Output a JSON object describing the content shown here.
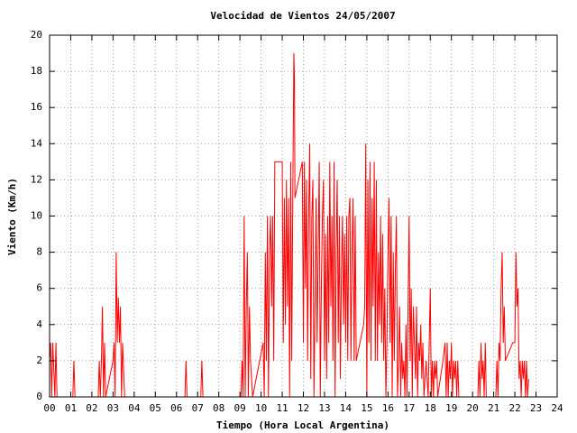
{
  "chart_data": {
    "type": "line",
    "title": "Velocidad de Vientos 24/05/2007",
    "xlabel": "Tiempo (Hora Local Argentina)",
    "ylabel": "Viento (Km/h)",
    "color": "#ff0000",
    "grid": true,
    "xlim": [
      0,
      24
    ],
    "ylim": [
      0,
      20
    ],
    "yticks": [
      0,
      2,
      4,
      6,
      8,
      10,
      12,
      14,
      16,
      18,
      20
    ],
    "xticks": [
      {
        "value": 0,
        "label": "00"
      },
      {
        "value": 1,
        "label": "01"
      },
      {
        "value": 2,
        "label": "02"
      },
      {
        "value": 3,
        "label": "03"
      },
      {
        "value": 4,
        "label": "04"
      },
      {
        "value": 5,
        "label": "05"
      },
      {
        "value": 6,
        "label": "06"
      },
      {
        "value": 7,
        "label": "07"
      },
      {
        "value": 8,
        "label": "08"
      },
      {
        "value": 9,
        "label": "09"
      },
      {
        "value": 10,
        "label": "10"
      },
      {
        "value": 11,
        "label": "11"
      },
      {
        "value": 12,
        "label": "12"
      },
      {
        "value": 13,
        "label": "13"
      },
      {
        "value": 14,
        "label": "14"
      },
      {
        "value": 15,
        "label": "15"
      },
      {
        "value": 16,
        "label": "16"
      },
      {
        "value": 17,
        "label": "17"
      },
      {
        "value": 18,
        "label": "18"
      },
      {
        "value": 19,
        "label": "19"
      },
      {
        "value": 20,
        "label": "20"
      },
      {
        "value": 21,
        "label": "21"
      },
      {
        "value": 22,
        "label": "22"
      },
      {
        "value": 23,
        "label": "23"
      },
      {
        "value": 24,
        "label": "24"
      }
    ],
    "x": [
      0.0,
      0.05,
      0.1,
      0.15,
      0.2,
      0.25,
      0.3,
      0.35,
      0.4,
      1.1,
      1.15,
      1.2,
      2.3,
      2.35,
      2.4,
      2.45,
      2.5,
      2.55,
      2.6,
      2.65,
      3.0,
      3.05,
      3.1,
      3.15,
      3.2,
      3.25,
      3.3,
      3.35,
      3.4,
      3.45,
      3.5,
      3.55,
      3.6,
      6.4,
      6.45,
      6.5,
      7.15,
      7.2,
      7.25,
      9.05,
      9.1,
      9.15,
      9.2,
      9.25,
      9.3,
      9.35,
      9.4,
      9.45,
      9.5,
      9.55,
      9.6,
      10.1,
      10.15,
      10.2,
      10.25,
      10.3,
      10.35,
      10.4,
      10.45,
      10.5,
      10.55,
      10.6,
      10.65,
      11.0,
      11.05,
      11.1,
      11.15,
      11.2,
      11.25,
      11.3,
      11.35,
      11.4,
      11.45,
      11.5,
      11.55,
      11.58,
      11.6,
      11.95,
      12.0,
      12.05,
      12.1,
      12.15,
      12.2,
      12.25,
      12.3,
      12.35,
      12.4,
      12.45,
      12.5,
      12.55,
      12.6,
      12.65,
      12.7,
      12.75,
      12.8,
      12.85,
      12.9,
      12.95,
      13.0,
      13.05,
      13.1,
      13.15,
      13.2,
      13.25,
      13.3,
      13.35,
      13.4,
      13.45,
      13.5,
      13.55,
      13.6,
      13.65,
      13.7,
      13.75,
      13.8,
      13.85,
      13.9,
      13.95,
      14.0,
      14.05,
      14.1,
      14.15,
      14.2,
      14.25,
      14.3,
      14.35,
      14.4,
      14.45,
      14.5,
      14.85,
      14.9,
      14.95,
      15.0,
      15.05,
      15.1,
      15.15,
      15.2,
      15.25,
      15.3,
      15.35,
      15.4,
      15.45,
      15.5,
      15.55,
      15.6,
      15.65,
      15.7,
      15.75,
      15.8,
      15.85,
      15.9,
      15.95,
      16.0,
      16.05,
      16.1,
      16.15,
      16.2,
      16.25,
      16.3,
      16.35,
      16.4,
      16.45,
      16.5,
      16.55,
      16.6,
      16.65,
      16.7,
      16.75,
      16.8,
      16.85,
      16.9,
      17.0,
      17.05,
      17.1,
      17.15,
      17.2,
      17.25,
      17.3,
      17.35,
      17.4,
      17.45,
      17.5,
      17.55,
      17.6,
      17.65,
      17.7,
      17.8,
      17.9,
      18.0,
      18.05,
      18.1,
      18.15,
      18.2,
      18.25,
      18.3,
      18.35,
      18.6,
      18.7,
      18.75,
      18.8,
      18.85,
      18.9,
      18.95,
      19.0,
      19.05,
      19.1,
      19.15,
      19.2,
      19.25,
      19.3,
      19.35,
      20.25,
      20.3,
      20.35,
      20.4,
      20.45,
      20.5,
      20.55,
      20.6,
      20.65,
      21.1,
      21.15,
      21.2,
      21.25,
      21.3,
      21.35,
      21.4,
      21.45,
      21.5,
      21.55,
      21.9,
      22.0,
      22.05,
      22.1,
      22.15,
      22.2,
      22.25,
      22.3,
      22.35,
      22.4,
      22.45,
      22.5,
      22.55,
      22.6,
      22.65
    ],
    "values": [
      2,
      3,
      0,
      3,
      1.5,
      0,
      3,
      0,
      0,
      0,
      2,
      0,
      0,
      2,
      0,
      2,
      5,
      0,
      3,
      0,
      2,
      3,
      0,
      8,
      3,
      5.5,
      3,
      5,
      0,
      3,
      1.5,
      0,
      0,
      0,
      2,
      0,
      0,
      2,
      0,
      0,
      2,
      0,
      10,
      0,
      5,
      8,
      0,
      5,
      2,
      1,
      0,
      3,
      0,
      8,
      2,
      10,
      0,
      8,
      10,
      5,
      10,
      2,
      13,
      13,
      3,
      11,
      4,
      12,
      5,
      11,
      0,
      13,
      2,
      11,
      19,
      17.5,
      11,
      13,
      3,
      13,
      6,
      12,
      2,
      10,
      14,
      1,
      10,
      12,
      0,
      5,
      11,
      3,
      8,
      13,
      0,
      6,
      10,
      12,
      2,
      9,
      1,
      10,
      3,
      13,
      5,
      10,
      2,
      13,
      0,
      8,
      12,
      3,
      10,
      1,
      7,
      10,
      4,
      9,
      3,
      10,
      2,
      10,
      11,
      2,
      8,
      11,
      2,
      10,
      2,
      4,
      5,
      14,
      0,
      12,
      3,
      13,
      2,
      11,
      5,
      13,
      2,
      12,
      2,
      8,
      4,
      10,
      3,
      9,
      2,
      6,
      0,
      3,
      8,
      11,
      3,
      10,
      0,
      8,
      2,
      7,
      10,
      0,
      2,
      5,
      0,
      3,
      1,
      2,
      0,
      4,
      0,
      10,
      2,
      6,
      0,
      5,
      3,
      1,
      5,
      0,
      3,
      2,
      4,
      1,
      3,
      0,
      2,
      0,
      6,
      0,
      2,
      0,
      2,
      1,
      2,
      0,
      2,
      3,
      0,
      3,
      0,
      2,
      1,
      3,
      0,
      2,
      1,
      2,
      0,
      2,
      0,
      0,
      2,
      0,
      3,
      1,
      2,
      0,
      3,
      0,
      0,
      2,
      0,
      3,
      2,
      6,
      8,
      3,
      5,
      2,
      3,
      3,
      8,
      5,
      6,
      1,
      2,
      0,
      2,
      1,
      2,
      0,
      2,
      0,
      1
    ]
  }
}
